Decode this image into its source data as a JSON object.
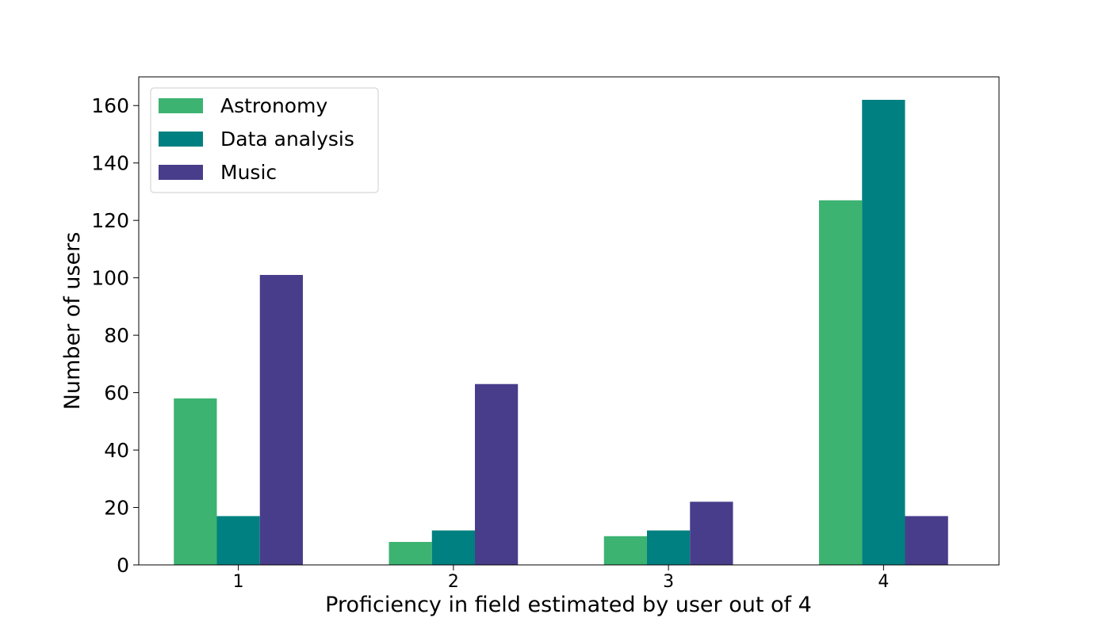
{
  "chart_data": {
    "type": "bar",
    "title": "",
    "xlabel": "Proficiency in field estimated by user out of 4",
    "ylabel": "Number of users",
    "categories": [
      "1",
      "2",
      "3",
      "4"
    ],
    "series": [
      {
        "name": "Astronomy",
        "values": [
          58,
          8,
          10,
          127
        ],
        "color": "#3cb371"
      },
      {
        "name": "Data analysis",
        "values": [
          17,
          12,
          12,
          162
        ],
        "color": "#008080"
      },
      {
        "name": "Music",
        "values": [
          101,
          63,
          22,
          17
        ],
        "color": "#483d8b"
      }
    ],
    "ylim": [
      0,
      170
    ],
    "yticks": [
      0,
      20,
      40,
      60,
      80,
      100,
      120,
      140,
      160
    ],
    "grid": false,
    "legend_position": "top-left"
  }
}
